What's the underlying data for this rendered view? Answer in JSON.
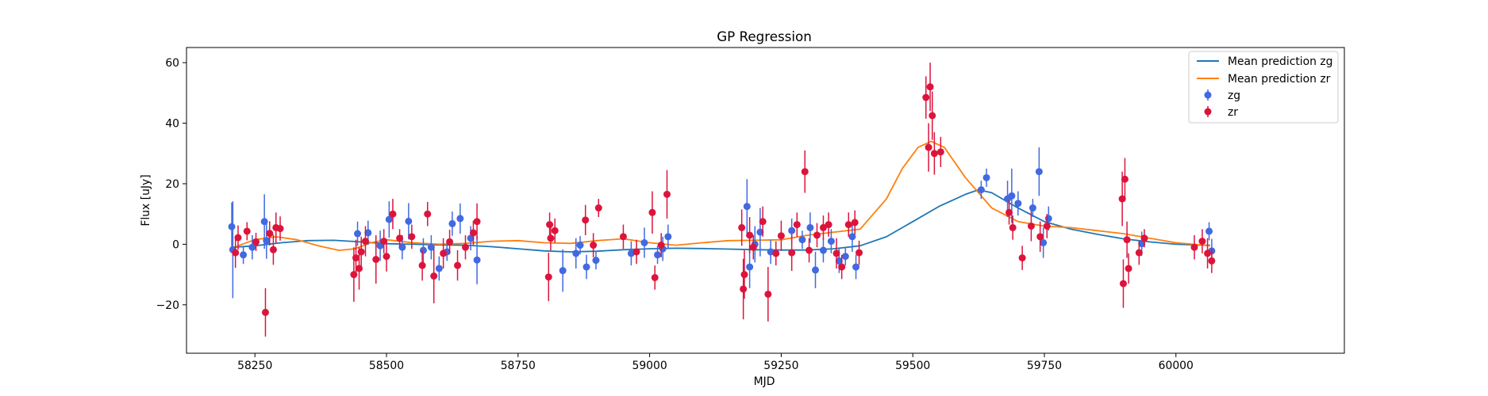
{
  "chart_data": {
    "type": "scatter",
    "title": "GP Regression",
    "xlabel": "MJD",
    "ylabel": "Flux [uJy]",
    "xlim": [
      58120,
      60320
    ],
    "ylim": [
      -36,
      65
    ],
    "xticks": [
      58250,
      58500,
      58750,
      59000,
      59250,
      59500,
      59750,
      60000
    ],
    "yticks": [
      -20,
      0,
      20,
      40,
      60
    ],
    "grid": false,
    "legend_position": "top-right",
    "legend": [
      "Mean prediction zg",
      "Mean prediction zr",
      "zg",
      "zr"
    ],
    "colors": {
      "zg_line": "#1f77b4",
      "zr_line": "#ff7f0e",
      "zg_points": "#4169e1",
      "zr_points": "#dc143c"
    },
    "lines": [
      {
        "name": "Mean prediction zg",
        "x": [
          58210,
          58250,
          58300,
          58350,
          58400,
          58450,
          58500,
          58550,
          58600,
          58650,
          58700,
          58750,
          58800,
          58850,
          58900,
          58950,
          59000,
          59050,
          59100,
          59150,
          59200,
          59250,
          59300,
          59350,
          59400,
          59450,
          59500,
          59550,
          59600,
          59625,
          59650,
          59700,
          59750,
          59800,
          59850,
          59900,
          59950,
          60000,
          60050,
          60065
        ],
        "y": [
          -1,
          -0.5,
          0.5,
          1.2,
          1.3,
          0.8,
          0.2,
          0,
          -0.2,
          -0.3,
          -0.8,
          -1.5,
          -2.2,
          -2.5,
          -2.3,
          -1.8,
          -1.5,
          -1.3,
          -1.4,
          -1.6,
          -1.8,
          -1.9,
          -1.9,
          -1.5,
          -0.5,
          2.5,
          7.5,
          12.5,
          16.5,
          18,
          17,
          12,
          7.5,
          5,
          3.3,
          1.8,
          0.8,
          0,
          -0.3,
          -0.3
        ]
      },
      {
        "name": "Mean prediction zr",
        "x": [
          58210,
          58250,
          58290,
          58330,
          58370,
          58410,
          58440,
          58470,
          58500,
          58550,
          58600,
          58650,
          58700,
          58750,
          58800,
          58850,
          58900,
          58950,
          59000,
          59050,
          59100,
          59150,
          59200,
          59250,
          59300,
          59350,
          59400,
          59450,
          59480,
          59510,
          59535,
          59560,
          59600,
          59650,
          59700,
          59750,
          59800,
          59850,
          59900,
          59950,
          60000,
          60065
        ],
        "y": [
          -1,
          1.5,
          2.5,
          1.5,
          -0.5,
          -2,
          -1.5,
          0.5,
          1.5,
          0.5,
          0,
          0.3,
          1,
          1.2,
          0.5,
          0.3,
          1.2,
          1.8,
          0.5,
          -0.3,
          0.5,
          1.2,
          1.3,
          1.5,
          3,
          4,
          5,
          15,
          25,
          32,
          34,
          32,
          22,
          12,
          7.5,
          6,
          5.5,
          4.5,
          3.5,
          2,
          0.5,
          -0.5
        ]
      }
    ],
    "series": [
      {
        "name": "zg",
        "points": [
          [
            58206,
            5.8,
            8
          ],
          [
            58208,
            -1.8,
            16
          ],
          [
            58228,
            -3.5,
            3
          ],
          [
            58245,
            -1,
            4
          ],
          [
            58268,
            7.5,
            9
          ],
          [
            58272,
            1.2,
            6
          ],
          [
            58445,
            3.5,
            4
          ],
          [
            58465,
            3.8,
            4
          ],
          [
            58488,
            -0.5,
            5
          ],
          [
            58505,
            8.2,
            6
          ],
          [
            58530,
            -1,
            4
          ],
          [
            58542,
            7.6,
            6
          ],
          [
            58570,
            -2,
            4
          ],
          [
            58585,
            -1,
            4
          ],
          [
            58600,
            -8,
            4
          ],
          [
            58615,
            -2.5,
            3
          ],
          [
            58625,
            6.8,
            4
          ],
          [
            58640,
            8.5,
            5
          ],
          [
            58660,
            2,
            4
          ],
          [
            58672,
            -5.2,
            8
          ],
          [
            58835,
            -8.7,
            7
          ],
          [
            58860,
            -3,
            5
          ],
          [
            58868,
            -0.3,
            3
          ],
          [
            58880,
            -7.5,
            4
          ],
          [
            58898,
            -5.3,
            3
          ],
          [
            58965,
            -3,
            4
          ],
          [
            58990,
            0.5,
            5
          ],
          [
            59015,
            -3.5,
            3
          ],
          [
            59025,
            -1.5,
            4
          ],
          [
            59035,
            2.5,
            4
          ],
          [
            59185,
            12.5,
            9
          ],
          [
            59190,
            -7.5,
            7
          ],
          [
            59200,
            0,
            6
          ],
          [
            59210,
            4,
            8
          ],
          [
            59230,
            -2.5,
            4
          ],
          [
            59270,
            4.5,
            4
          ],
          [
            59290,
            1.5,
            3
          ],
          [
            59305,
            5.5,
            5
          ],
          [
            59315,
            -8.5,
            6
          ],
          [
            59330,
            -2,
            4
          ],
          [
            59345,
            1,
            4
          ],
          [
            59360,
            -5.5,
            4
          ],
          [
            59372,
            -4,
            3
          ],
          [
            59385,
            2.5,
            5
          ],
          [
            59392,
            -7.5,
            4
          ],
          [
            59630,
            18,
            3
          ],
          [
            59640,
            22,
            3
          ],
          [
            59680,
            15,
            6
          ],
          [
            59688,
            16,
            9
          ],
          [
            59700,
            13.5,
            4
          ],
          [
            59728,
            12,
            3
          ],
          [
            59740,
            24,
            8
          ],
          [
            59748,
            0.5,
            5
          ],
          [
            59758,
            8.5,
            4
          ],
          [
            59935,
            0.2,
            4
          ],
          [
            60063,
            4.3,
            3
          ],
          [
            60068,
            -2.2,
            4
          ]
        ]
      },
      {
        "name": "zr",
        "points": [
          [
            58213,
            -2.8,
            5
          ],
          [
            58218,
            2.2,
            4
          ],
          [
            58235,
            4.3,
            3
          ],
          [
            58252,
            0.8,
            3
          ],
          [
            58270,
            -22.5,
            8
          ],
          [
            58278,
            3.6,
            4
          ],
          [
            58285,
            -1.8,
            5
          ],
          [
            58290,
            5.5,
            5
          ],
          [
            58298,
            5.2,
            4
          ],
          [
            58438,
            -10,
            9
          ],
          [
            58442,
            -4.5,
            6
          ],
          [
            58448,
            -8,
            7
          ],
          [
            58452,
            -2.5,
            5
          ],
          [
            58460,
            1,
            5
          ],
          [
            58480,
            -5,
            8
          ],
          [
            58495,
            1,
            4
          ],
          [
            58500,
            -4,
            5
          ],
          [
            58512,
            10,
            5
          ],
          [
            58525,
            2,
            3
          ],
          [
            58548,
            2.5,
            4
          ],
          [
            58568,
            -7,
            5
          ],
          [
            58578,
            10,
            4
          ],
          [
            58590,
            -10.5,
            9
          ],
          [
            58608,
            -3,
            5
          ],
          [
            58620,
            0.8,
            4
          ],
          [
            58635,
            -7,
            5
          ],
          [
            58650,
            -1,
            4
          ],
          [
            58665,
            3.8,
            4
          ],
          [
            58672,
            7.5,
            6
          ],
          [
            58808,
            -10.8,
            8
          ],
          [
            58810,
            6.5,
            4
          ],
          [
            58812,
            2,
            4
          ],
          [
            58820,
            4.5,
            4
          ],
          [
            58878,
            8,
            5
          ],
          [
            58893,
            -0.3,
            4
          ],
          [
            58903,
            12,
            3
          ],
          [
            58950,
            2.5,
            4
          ],
          [
            58975,
            -2.5,
            4
          ],
          [
            59005,
            10.5,
            7
          ],
          [
            59010,
            -11,
            4
          ],
          [
            59022,
            -0.3,
            4
          ],
          [
            59033,
            16.5,
            8
          ],
          [
            59175,
            5.5,
            6
          ],
          [
            59178,
            -14.8,
            10
          ],
          [
            59180,
            -10,
            8
          ],
          [
            59190,
            3,
            6
          ],
          [
            59197,
            -1,
            4
          ],
          [
            59215,
            7.5,
            5
          ],
          [
            59225,
            -16.5,
            9
          ],
          [
            59240,
            -3,
            4
          ],
          [
            59250,
            2.8,
            5
          ],
          [
            59270,
            -2.8,
            6
          ],
          [
            59280,
            6.5,
            4
          ],
          [
            59295,
            24,
            7
          ],
          [
            59303,
            -2,
            4
          ],
          [
            59318,
            3,
            4
          ],
          [
            59330,
            5.5,
            4
          ],
          [
            59340,
            6.5,
            4
          ],
          [
            59355,
            -3,
            5
          ],
          [
            59365,
            -7.5,
            4
          ],
          [
            59378,
            6.5,
            4
          ],
          [
            59390,
            7.2,
            4
          ],
          [
            59398,
            -2.8,
            4
          ],
          [
            59525,
            48.5,
            7
          ],
          [
            59530,
            32,
            8
          ],
          [
            59533,
            52,
            8
          ],
          [
            59537,
            42.5,
            8
          ],
          [
            59541,
            30,
            7
          ],
          [
            59553,
            30.5,
            5
          ],
          [
            59683,
            10.5,
            4
          ],
          [
            59690,
            5.5,
            4
          ],
          [
            59708,
            -4.5,
            4
          ],
          [
            59725,
            6,
            5
          ],
          [
            59742,
            2.5,
            5
          ],
          [
            59755,
            6,
            4
          ],
          [
            59898,
            15,
            9
          ],
          [
            59900,
            -13,
            8
          ],
          [
            59903,
            21.5,
            7
          ],
          [
            59907,
            1.5,
            6
          ],
          [
            59910,
            -8,
            5
          ],
          [
            59930,
            -2.8,
            4
          ],
          [
            59940,
            2,
            3
          ],
          [
            60035,
            -1,
            4
          ],
          [
            60050,
            1,
            4
          ],
          [
            60060,
            -3,
            5
          ],
          [
            60068,
            -5.5,
            4
          ]
        ]
      }
    ]
  }
}
